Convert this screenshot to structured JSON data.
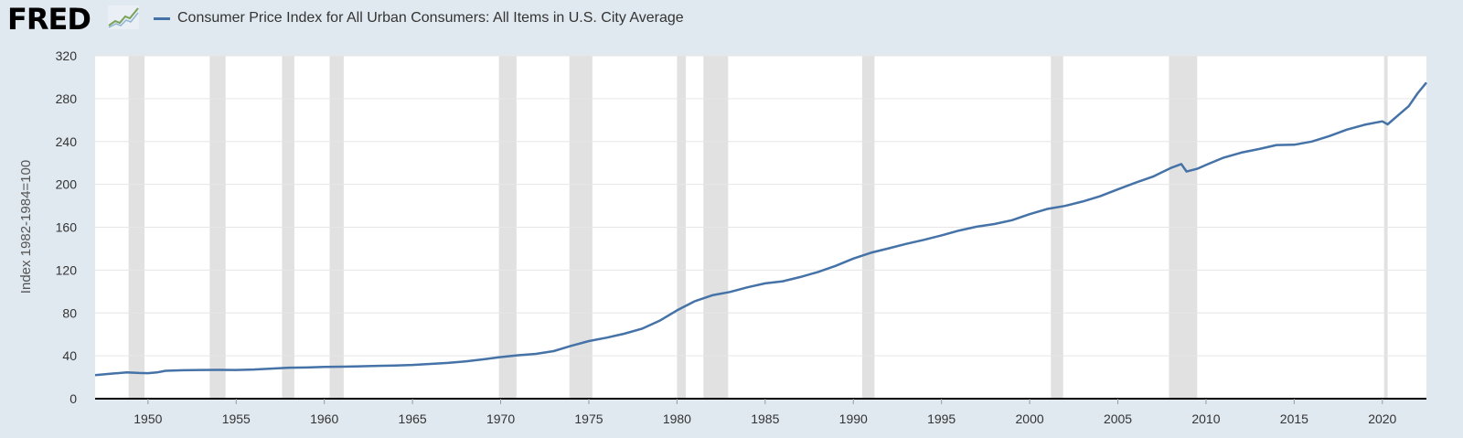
{
  "header": {
    "logo_text": "FRED",
    "logo_icon": "trend-line-icon"
  },
  "colors": {
    "background": "#e1e9f0",
    "plot_background": "#ffffff",
    "series": "#4572a7",
    "recession": "#e1e1e1",
    "grid": "#e6e6e6",
    "axis": "#000000"
  },
  "chart_data": {
    "type": "line",
    "title": "",
    "ylabel": "Index 1982-1984=100",
    "xlabel": "",
    "xlim": [
      1947,
      2022.5
    ],
    "ylim": [
      0,
      320
    ],
    "grid": "horizontal",
    "legend": "top-left",
    "yticks": [
      "0",
      "40",
      "80",
      "120",
      "160",
      "200",
      "240",
      "280",
      "320"
    ],
    "xticks": [
      "1950",
      "1955",
      "1960",
      "1965",
      "1970",
      "1975",
      "1980",
      "1985",
      "1990",
      "1995",
      "2000",
      "2005",
      "2010",
      "2015",
      "2020"
    ],
    "recessions": [
      [
        1948.9,
        1949.8
      ],
      [
        1953.5,
        1954.4
      ],
      [
        1957.6,
        1958.3
      ],
      [
        1960.3,
        1961.1
      ],
      [
        1969.9,
        1970.9
      ],
      [
        1973.9,
        1975.2
      ],
      [
        1980.0,
        1980.5
      ],
      [
        1981.5,
        1982.9
      ],
      [
        1990.5,
        1991.2
      ],
      [
        2001.2,
        2001.9
      ],
      [
        2007.9,
        2009.5
      ],
      [
        2020.1,
        2020.3
      ]
    ],
    "series": [
      {
        "name": "Consumer Price Index for All Urban Consumers: All Items in U.S. City Average",
        "x": [
          1947,
          1948,
          1948.8,
          1949.5,
          1950,
          1950.5,
          1951,
          1952,
          1953,
          1954,
          1955,
          1956,
          1957,
          1958,
          1959,
          1960,
          1961,
          1962,
          1963,
          1964,
          1965,
          1966,
          1967,
          1968,
          1969,
          1970,
          1971,
          1972,
          1973,
          1974,
          1975,
          1976,
          1977,
          1978,
          1979,
          1980,
          1981,
          1982,
          1983,
          1984,
          1985,
          1986,
          1987,
          1988,
          1989,
          1990,
          1991,
          1992,
          1993,
          1994,
          1995,
          1996,
          1997,
          1998,
          1999,
          2000,
          2001,
          2002,
          2003,
          2004,
          2005,
          2006,
          2007,
          2008,
          2008.6,
          2008.9,
          2009.5,
          2010,
          2011,
          2012,
          2013,
          2014,
          2015,
          2016,
          2017,
          2018,
          2019,
          2020,
          2020.3,
          2021,
          2021.5,
          2022,
          2022.5
        ],
        "values": [
          22.0,
          23.5,
          24.5,
          24.0,
          23.8,
          24.5,
          26.0,
          26.5,
          26.8,
          26.9,
          26.8,
          27.2,
          28.1,
          28.9,
          29.1,
          29.6,
          29.9,
          30.2,
          30.6,
          31.0,
          31.5,
          32.4,
          33.4,
          34.8,
          36.7,
          38.8,
          40.5,
          41.8,
          44.4,
          49.3,
          53.8,
          56.9,
          60.6,
          65.2,
          72.6,
          82.4,
          90.9,
          96.5,
          99.6,
          103.9,
          107.6,
          109.6,
          113.6,
          118.3,
          124.0,
          130.7,
          136.2,
          140.3,
          144.5,
          148.2,
          152.4,
          156.9,
          160.5,
          163.0,
          166.6,
          172.2,
          177.1,
          179.9,
          184.0,
          188.9,
          195.3,
          201.6,
          207.3,
          215.3,
          219.0,
          212.0,
          214.5,
          218.1,
          224.9,
          229.6,
          233.0,
          236.7,
          237.0,
          240.0,
          245.1,
          251.1,
          255.7,
          258.8,
          256.0,
          266.0,
          273.0,
          285.0,
          295.0
        ]
      }
    ]
  }
}
